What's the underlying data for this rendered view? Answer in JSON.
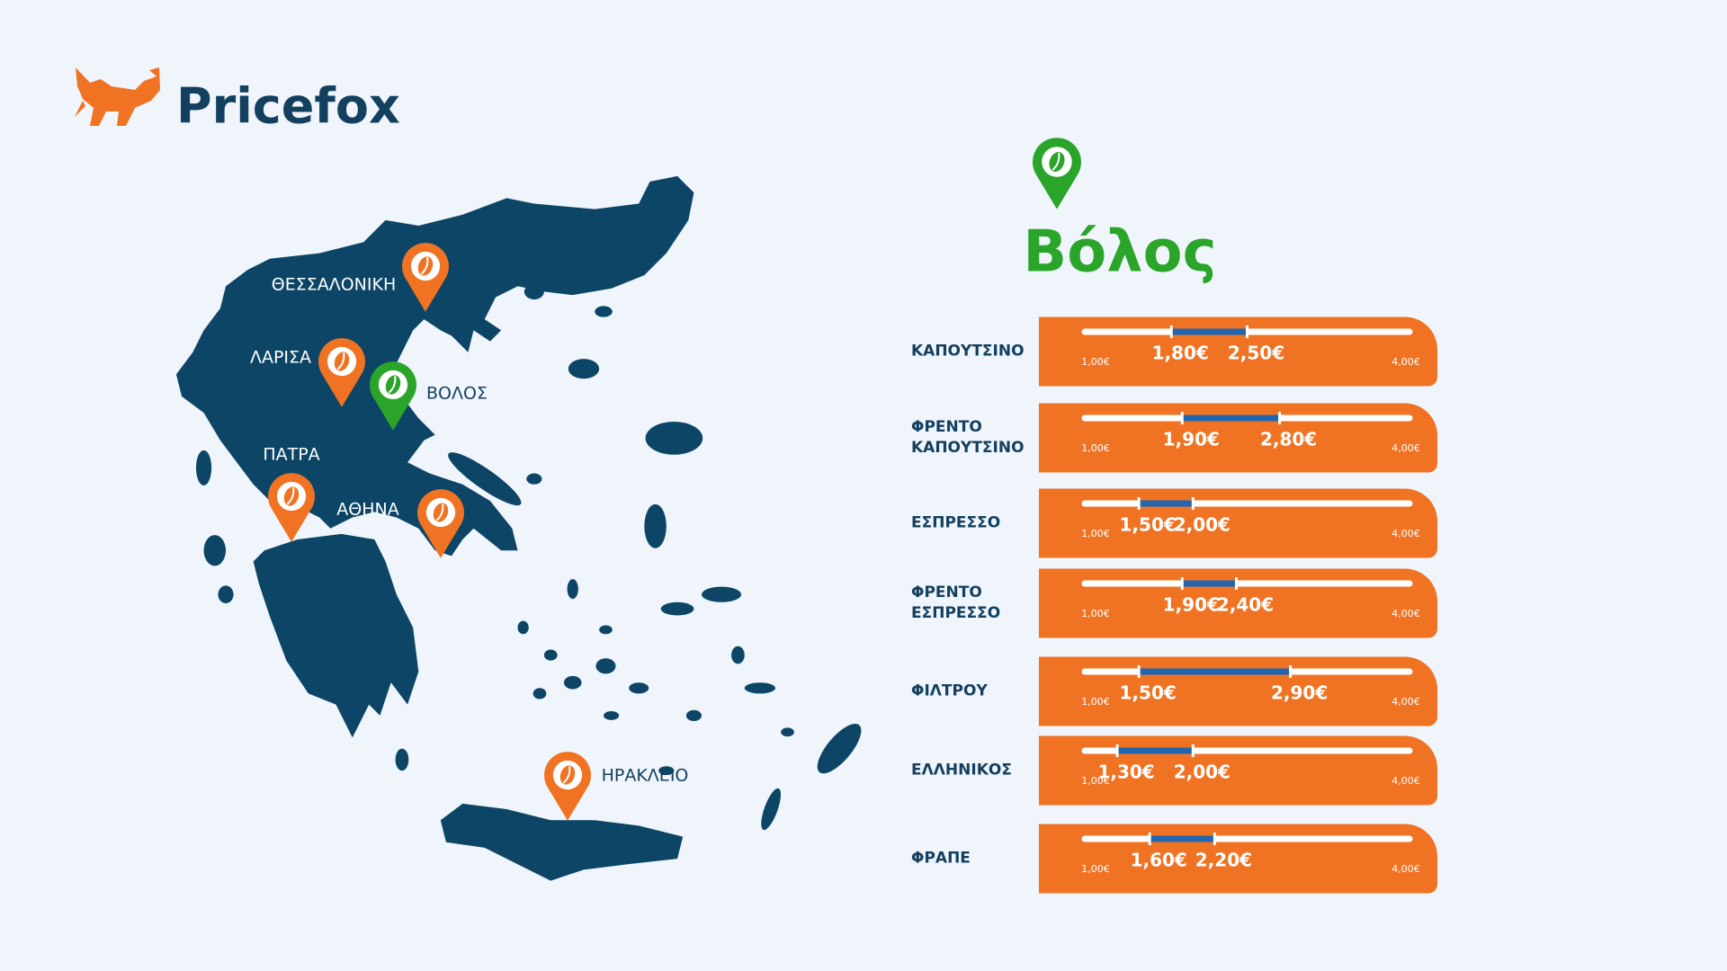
{
  "brand": "Pricefox",
  "map": {
    "cities": [
      {
        "label": "ΘΕΣΣΑΛΟΝΙΚΗ"
      },
      {
        "label": "ΛΑΡΙΣΑ"
      },
      {
        "label": "ΒΟΛΟΣ"
      },
      {
        "label": "ΠΑΤΡΑ"
      },
      {
        "label": "ΑΘΗΝΑ"
      },
      {
        "label": "ΗΡΑΚΛΕΙΟ"
      }
    ]
  },
  "chart_data": {
    "type": "range",
    "title": "Βόλος",
    "categories": [
      "ΚΑΠΟΥΤΣΙΝΟ",
      "ΦΡΕΝΤΟ ΚΑΠΟΥΤΣΙΝΟ",
      "ΕΣΠΡΕΣΣΟ",
      "ΦΡΕΝΤΟ ΕΣΠΡΕΣΣΟ",
      "ΦΙΛΤΡΟΥ",
      "ΕΛΛΗΝΙΚΟΣ",
      "ΦΡΑΠΕ"
    ],
    "series": [
      {
        "values": [
          1.8,
          1.9,
          1.5,
          1.9,
          1.5,
          1.3,
          1.6
        ],
        "value_labels": [
          "1,80€",
          "1,90€",
          "1,50€",
          "1,90€",
          "1,50€",
          "1,30€",
          "1,60€"
        ]
      },
      {
        "values": [
          2.5,
          2.8,
          2.0,
          2.4,
          2.9,
          2.0,
          2.2
        ],
        "value_labels": [
          "2,50€",
          "2,80€",
          "2,00€",
          "2,40€",
          "2,90€",
          "2,00€",
          "2,20€"
        ]
      }
    ],
    "xlim": [
      1,
      4
    ],
    "xticks": [
      {
        "value": 1,
        "label": "1,00€"
      },
      {
        "value": 4,
        "label": "4,00€"
      }
    ],
    "bar_color": "#f07323",
    "range_color": "#2166b0"
  }
}
